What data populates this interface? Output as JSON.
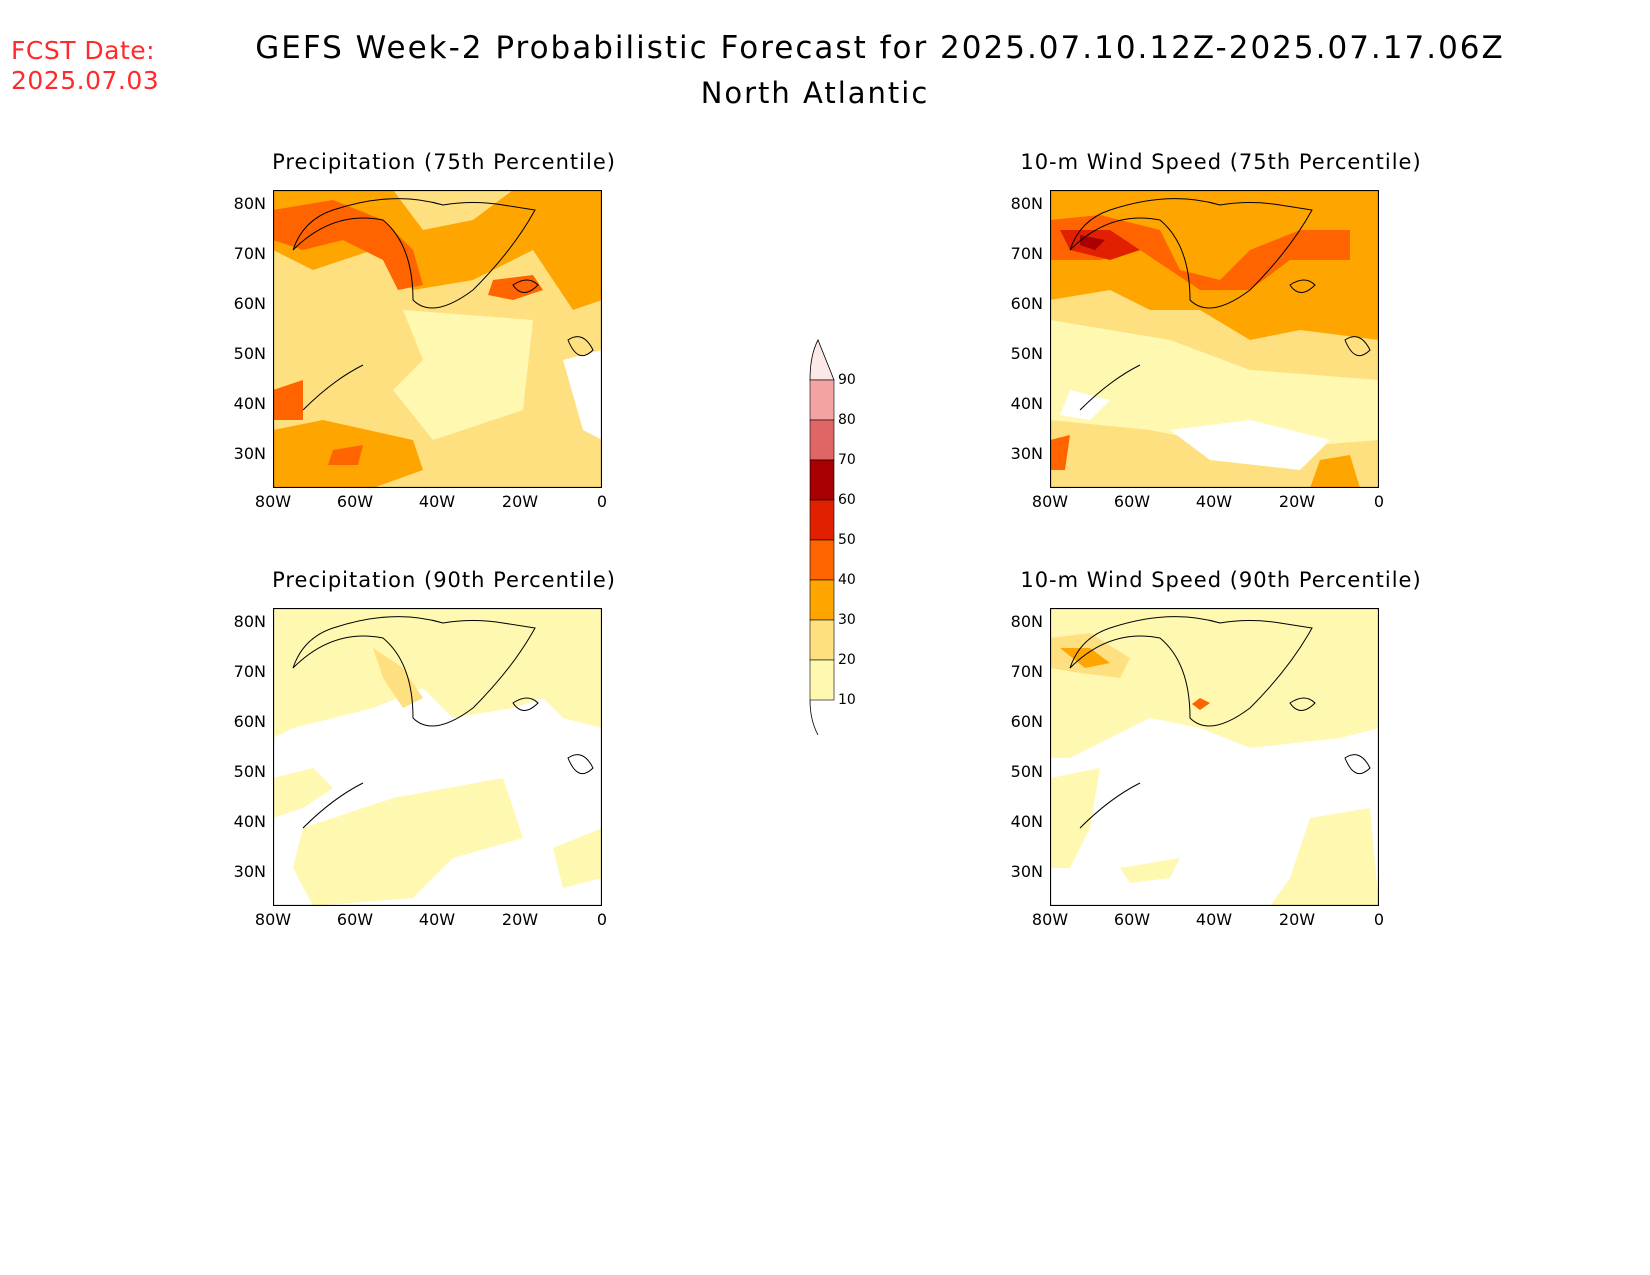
{
  "header": {
    "fcst_label": "FCST Date:",
    "fcst_date": "2025.07.03",
    "title": "GEFS Week-2 Probabilistic Forecast for 2025.07.10.12Z-2025.07.17.06Z",
    "region": "North Atlantic"
  },
  "axes": {
    "lat_labels": [
      "80N",
      "70N",
      "60N",
      "50N",
      "40N",
      "30N"
    ],
    "lon_labels": [
      "80W",
      "60W",
      "40W",
      "20W",
      "0"
    ]
  },
  "panels": [
    {
      "title": "Precipitation (75th Percentile)",
      "intensity": "high"
    },
    {
      "title": "10-m Wind Speed (75th Percentile)",
      "intensity": "high"
    },
    {
      "title": "Precipitation (90th Percentile)",
      "intensity": "low"
    },
    {
      "title": "10-m Wind Speed (90th Percentile)",
      "intensity": "low"
    }
  ],
  "colorbar": {
    "labels": [
      "90",
      "80",
      "70",
      "60",
      "50",
      "40",
      "30",
      "20",
      "10"
    ],
    "colors": [
      "#fde8e8",
      "#f4a3a3",
      "#e06666",
      "#a80000",
      "#e02000",
      "#ff6400",
      "#ffa500",
      "#ffe080",
      "#fff8b0"
    ]
  }
}
